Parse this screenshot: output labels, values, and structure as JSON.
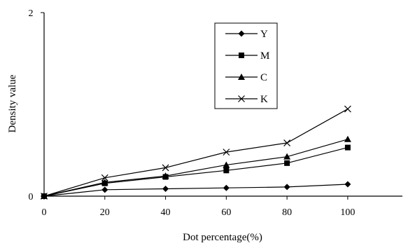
{
  "chart_data": {
    "type": "line",
    "title": "",
    "xlabel": "Dot percentage(%)",
    "ylabel": "Density value",
    "x": [
      0,
      20,
      40,
      60,
      80,
      100
    ],
    "x_ticks": [
      "0",
      "20",
      "40",
      "60",
      "80",
      "100"
    ],
    "y_ticks": [
      "0",
      "2"
    ],
    "xlim": [
      0,
      118
    ],
    "ylim": [
      0,
      2
    ],
    "grid": false,
    "legend_position": "top-center",
    "series": [
      {
        "name": "Y",
        "marker": "diamond",
        "values": [
          0,
          0.07,
          0.08,
          0.09,
          0.1,
          0.13
        ]
      },
      {
        "name": "M",
        "marker": "square",
        "values": [
          0,
          0.14,
          0.21,
          0.28,
          0.36,
          0.53
        ]
      },
      {
        "name": "C",
        "marker": "triangle",
        "values": [
          0,
          0.15,
          0.22,
          0.34,
          0.43,
          0.62
        ]
      },
      {
        "name": "K",
        "marker": "x",
        "values": [
          0,
          0.2,
          0.31,
          0.48,
          0.58,
          0.95
        ]
      }
    ],
    "line_color": "#000000"
  }
}
